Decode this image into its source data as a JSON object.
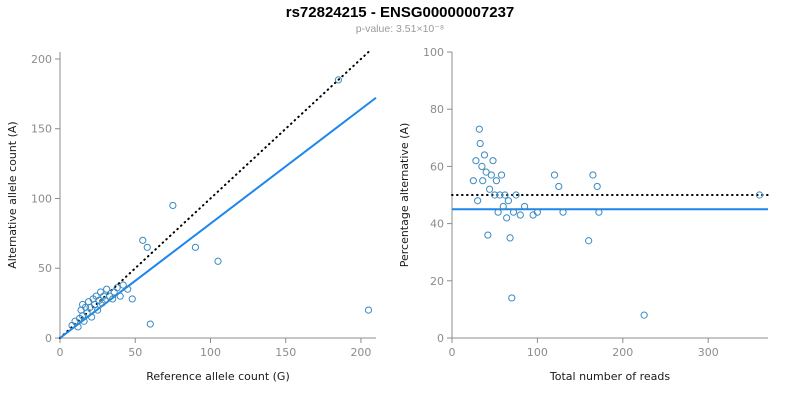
{
  "page": {
    "title": "rs72824215 - ENSG00000007237",
    "subtitle": "p-value: 3.51×10⁻⁸"
  },
  "colors": {
    "point": "#3b8bc2",
    "fit_line": "#1c86ee",
    "identity_line": "#000000",
    "axis": "#8c8c8c",
    "tick_text": "#8c8c8c",
    "axis_label": "#1a1a1a",
    "title": "#000000",
    "subtitle": "#9a9a9a"
  },
  "chart_data": [
    {
      "type": "scatter",
      "name": "allele-counts",
      "xlabel": "Reference allele count (G)",
      "ylabel": "Alternative allele count (A)",
      "xlim": [
        0,
        210
      ],
      "ylim": [
        0,
        205
      ],
      "xticks": [
        0,
        50,
        100,
        150,
        200
      ],
      "yticks": [
        0,
        50,
        100,
        150,
        200
      ],
      "points": [
        [
          8,
          9
        ],
        [
          10,
          12
        ],
        [
          12,
          8
        ],
        [
          13,
          14
        ],
        [
          14,
          20
        ],
        [
          15,
          16
        ],
        [
          15,
          24
        ],
        [
          16,
          12
        ],
        [
          17,
          22
        ],
        [
          18,
          18
        ],
        [
          19,
          26
        ],
        [
          20,
          22
        ],
        [
          21,
          15
        ],
        [
          22,
          28
        ],
        [
          23,
          24
        ],
        [
          24,
          30
        ],
        [
          25,
          20
        ],
        [
          26,
          27
        ],
        [
          27,
          33
        ],
        [
          28,
          25
        ],
        [
          29,
          30
        ],
        [
          30,
          27
        ],
        [
          31,
          35
        ],
        [
          33,
          30
        ],
        [
          35,
          28
        ],
        [
          36,
          33
        ],
        [
          38,
          36
        ],
        [
          40,
          30
        ],
        [
          42,
          38
        ],
        [
          45,
          35
        ],
        [
          48,
          28
        ],
        [
          55,
          70
        ],
        [
          58,
          65
        ],
        [
          60,
          10
        ],
        [
          75,
          95
        ],
        [
          90,
          65
        ],
        [
          105,
          55
        ],
        [
          185,
          185
        ],
        [
          205,
          20
        ]
      ],
      "lines": [
        {
          "kind": "abline",
          "slope": 1.0,
          "intercept": 0,
          "style": "dotted",
          "color": "#000000",
          "label": "identity"
        },
        {
          "kind": "abline",
          "slope": 0.82,
          "intercept": 0,
          "style": "solid",
          "color": "#1c86ee",
          "label": "fit"
        }
      ]
    },
    {
      "type": "scatter",
      "name": "percentage-vs-reads",
      "xlabel": "Total number of reads",
      "ylabel": "Percentage alternative (A)",
      "xlim": [
        0,
        370
      ],
      "ylim": [
        0,
        100
      ],
      "xticks": [
        0,
        100,
        200,
        300
      ],
      "yticks": [
        0,
        20,
        40,
        60,
        80,
        100
      ],
      "points": [
        [
          25,
          55
        ],
        [
          28,
          62
        ],
        [
          30,
          48
        ],
        [
          32,
          73
        ],
        [
          33,
          68
        ],
        [
          35,
          60
        ],
        [
          36,
          55
        ],
        [
          38,
          64
        ],
        [
          40,
          58
        ],
        [
          42,
          36
        ],
        [
          44,
          52
        ],
        [
          46,
          57
        ],
        [
          48,
          62
        ],
        [
          50,
          50
        ],
        [
          52,
          55
        ],
        [
          54,
          44
        ],
        [
          56,
          50
        ],
        [
          58,
          57
        ],
        [
          60,
          46
        ],
        [
          62,
          50
        ],
        [
          64,
          42
        ],
        [
          66,
          48
        ],
        [
          68,
          35
        ],
        [
          70,
          14
        ],
        [
          72,
          44
        ],
        [
          75,
          50
        ],
        [
          80,
          43
        ],
        [
          85,
          46
        ],
        [
          95,
          43
        ],
        [
          100,
          44
        ],
        [
          120,
          57
        ],
        [
          125,
          53
        ],
        [
          130,
          44
        ],
        [
          160,
          34
        ],
        [
          165,
          57
        ],
        [
          170,
          53
        ],
        [
          172,
          44
        ],
        [
          225,
          8
        ],
        [
          360,
          50
        ]
      ],
      "lines": [
        {
          "kind": "hline",
          "y": 50,
          "style": "dotted",
          "color": "#000000",
          "label": "expected-50-percent"
        },
        {
          "kind": "hline",
          "y": 45,
          "style": "solid",
          "color": "#1c86ee",
          "label": "mean-percentage"
        }
      ]
    }
  ]
}
